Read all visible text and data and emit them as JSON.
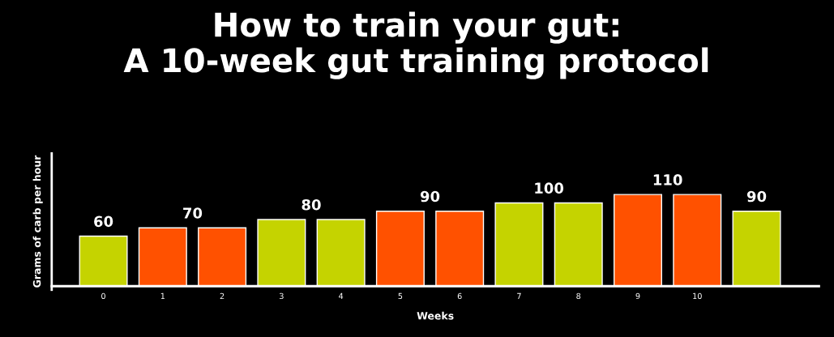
{
  "chart_data": {
    "type": "bar",
    "title": "How to train your gut:\nA 10-week gut training protocol",
    "xlabel": "Weeks",
    "ylabel": "Grams of carb per hour",
    "categories": [
      "0",
      "1",
      "2",
      "3",
      "4",
      "5",
      "6",
      "7",
      "8",
      "9",
      "10",
      null
    ],
    "values": [
      60,
      70,
      70,
      80,
      80,
      90,
      90,
      100,
      100,
      110,
      110,
      90
    ],
    "colors": [
      "#c5d300",
      "#ff5100",
      "#ff5100",
      "#c5d300",
      "#c5d300",
      "#ff5100",
      "#ff5100",
      "#c5d300",
      "#c5d300",
      "#ff5100",
      "#ff5100",
      "#c5d300"
    ],
    "value_labels": [
      "60",
      "70",
      null,
      "80",
      null,
      "90",
      null,
      "100",
      null,
      "110",
      null,
      "90"
    ],
    "grid": false,
    "legend": false
  }
}
